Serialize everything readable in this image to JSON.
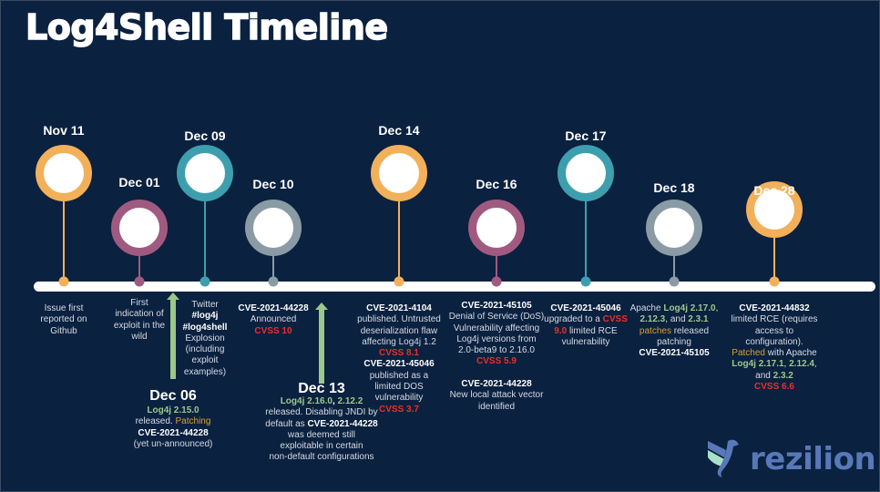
{
  "title": "Log4Shell Timeline",
  "colors": {
    "background": "#0b2140",
    "orange": "#f2b05a",
    "purple": "#a05a80",
    "teal": "#3d9fae",
    "gray": "#8a9ba6",
    "green": "#9cc88a",
    "red": "#ea2f2a",
    "logo": "#5878b8",
    "logo_accent": "#a8e0c8"
  },
  "events": [
    {
      "date": "Nov 11",
      "color": "orange",
      "description": [
        [
          [
            "Issue first",
            "n"
          ]
        ],
        [
          [
            "reported on",
            "n"
          ]
        ],
        [
          [
            "Github",
            "n"
          ]
        ]
      ]
    },
    {
      "date": "Dec 01",
      "color": "purple",
      "description": [
        [
          [
            "First",
            "n"
          ]
        ],
        [
          [
            "indication of",
            "n"
          ]
        ],
        [
          [
            "exploit in the",
            "n"
          ]
        ],
        [
          [
            "wild",
            "n"
          ]
        ]
      ]
    },
    {
      "date": "Dec 09",
      "color": "teal",
      "description": [
        [
          [
            "Twitter",
            "n"
          ]
        ],
        [
          [
            "#log4j",
            "w"
          ]
        ],
        [
          [
            "#log4shell",
            "w"
          ]
        ],
        [
          [
            "Explosion",
            "n"
          ]
        ],
        [
          [
            "(including",
            "n"
          ]
        ],
        [
          [
            "exploit",
            "n"
          ]
        ],
        [
          [
            "examples)",
            "n"
          ]
        ]
      ]
    },
    {
      "date": "Dec  10",
      "color": "gray",
      "description": [
        [
          [
            "CVE-2021-44228",
            "w"
          ]
        ],
        [
          [
            "Announced",
            "n"
          ]
        ],
        [
          [
            "CVSS 10",
            "r"
          ]
        ]
      ]
    },
    {
      "date": "Dec 14",
      "color": "orange",
      "description": [
        [
          [
            "CVE-2021-4104",
            "w"
          ]
        ],
        [
          [
            "published. Untrusted",
            "n"
          ]
        ],
        [
          [
            "deserialization flaw",
            "n"
          ]
        ],
        [
          [
            "affecting Log4j 1.2",
            "n"
          ]
        ],
        [
          [
            "CVSS 8.1",
            "r"
          ]
        ],
        [
          [
            "CVE-2021-45046",
            "w"
          ]
        ],
        [
          [
            "published as a",
            "n"
          ]
        ],
        [
          [
            "limited DOS",
            "n"
          ]
        ],
        [
          [
            "vulnerability",
            "n"
          ]
        ],
        [
          [
            "CVSS 3.7",
            "r"
          ]
        ]
      ]
    },
    {
      "date": "Dec 16",
      "color": "purple",
      "description": [
        [
          [
            "CVE-2021-45105",
            "w"
          ]
        ],
        [
          [
            "Denial of Service (DoS)",
            "n"
          ]
        ],
        [
          [
            "Vulnerability affecting",
            "n"
          ]
        ],
        [
          [
            "Log4j versions from",
            "n"
          ]
        ],
        [
          [
            "2.0-beta9 to 2.16.0",
            "n"
          ]
        ],
        [
          [
            "CVSS 5.9",
            "r"
          ]
        ],
        [
          [
            "",
            ""
          ]
        ],
        [
          [
            "CVE-2021-44228",
            "w"
          ]
        ],
        [
          [
            "New local attack vector",
            "n"
          ]
        ],
        [
          [
            "identified",
            "n"
          ]
        ]
      ]
    },
    {
      "date": "Dec  17",
      "color": "teal",
      "description": [
        [
          [
            "CVE-2021-45046",
            "w"
          ]
        ],
        [
          [
            "upgraded to a ",
            "n"
          ],
          [
            "CVSS",
            "r"
          ]
        ],
        [
          [
            "9.0",
            "r"
          ],
          [
            " limited RCE",
            "n"
          ]
        ],
        [
          [
            "vulnerability",
            "n"
          ]
        ]
      ]
    },
    {
      "date": "Dec  18",
      "color": "gray",
      "description": [
        [
          [
            "Apache ",
            "n"
          ],
          [
            "Log4j 2.17.0",
            "g"
          ],
          [
            ",",
            "n"
          ]
        ],
        [
          [
            "2.12.3",
            "g"
          ],
          [
            ", and ",
            "n"
          ],
          [
            "2.3.1",
            "g"
          ]
        ],
        [
          [
            "patches",
            "o"
          ],
          [
            " released",
            "n"
          ]
        ],
        [
          [
            "patching",
            "n"
          ]
        ],
        [
          [
            "CVE-2021-45105",
            "w"
          ]
        ]
      ]
    },
    {
      "date": "Dec  28",
      "color": "orange",
      "description": [
        [
          [
            "CVE-2021-44832",
            "w"
          ]
        ],
        [
          [
            "limited RCE (requires",
            "n"
          ]
        ],
        [
          [
            "access to",
            "n"
          ]
        ],
        [
          [
            "configuration).",
            "n"
          ]
        ],
        [
          [
            "Patched",
            "o"
          ],
          [
            " with Apache",
            "n"
          ]
        ],
        [
          [
            "Log4j 2.17.1",
            "g"
          ],
          [
            ", ",
            "n"
          ],
          [
            "2.12.4",
            "g"
          ],
          [
            ",",
            "n"
          ]
        ],
        [
          [
            "and ",
            "n"
          ],
          [
            "2.3.2",
            "g"
          ]
        ],
        [
          [
            "CVSS 6.6",
            "r"
          ]
        ]
      ]
    }
  ],
  "sub_events": [
    {
      "date": "Dec 06",
      "description": [
        [
          [
            "Log4j 2.15.0",
            "g"
          ]
        ],
        [
          [
            "released. ",
            "n"
          ],
          [
            "Patching",
            "o"
          ]
        ],
        [
          [
            "CVE-2021-44228",
            "w"
          ]
        ],
        [
          [
            "(yet un-announced)",
            "n"
          ]
        ]
      ]
    },
    {
      "date": "Dec 13",
      "description": [
        [
          [
            "Log4j 2.16.0",
            "g"
          ],
          [
            ", ",
            "w"
          ],
          [
            "2.12.2",
            "g"
          ]
        ],
        [
          [
            "released. Disabling JNDI by",
            "n"
          ]
        ],
        [
          [
            "default  as ",
            "n"
          ],
          [
            "CVE-2021-44228",
            "w"
          ]
        ],
        [
          [
            "was deemed still",
            "n"
          ]
        ],
        [
          [
            "exploitable in certain",
            "n"
          ]
        ],
        [
          [
            "non-default configurations",
            "n"
          ]
        ]
      ]
    }
  ],
  "logo": {
    "name": "rezilion",
    "icon": "griffin-wing-icon"
  }
}
